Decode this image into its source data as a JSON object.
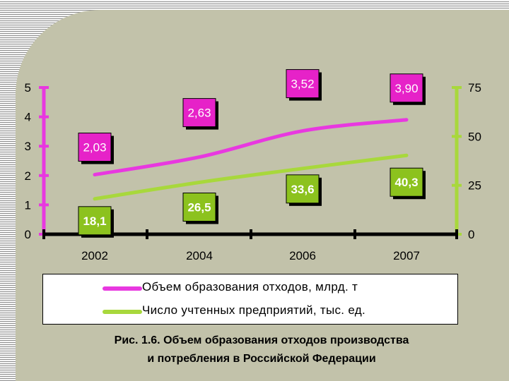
{
  "colors": {
    "series1": "#e838e0",
    "series2": "#a8d83c",
    "label_bg1": "#e622c8",
    "label_bg2": "#8cc21e",
    "axis": "#000000",
    "background": "#c2c2aa"
  },
  "chart_data": {
    "type": "line",
    "categories": [
      "2002",
      "2004",
      "2006",
      "2007"
    ],
    "x": [
      2002,
      2004,
      2006,
      2007
    ],
    "y_left": {
      "ylim": [
        0,
        5
      ],
      "ticks": [
        "0",
        "1",
        "2",
        "3",
        "4",
        "5"
      ]
    },
    "y_right": {
      "ylim": [
        0,
        75
      ],
      "ticks": [
        "0",
        "25",
        "50",
        "75"
      ]
    },
    "series": [
      {
        "name": "Объем образования отходов, млрд. т",
        "axis": "left",
        "values": [
          2.03,
          2.63,
          3.52,
          3.9
        ],
        "labels": [
          "2,03",
          "2,63",
          "3,52",
          "3,90"
        ]
      },
      {
        "name": "Число учтенных предприятий, тыс. ед.",
        "axis": "right",
        "values": [
          18.1,
          26.5,
          33.6,
          40.3
        ],
        "labels": [
          "18,1",
          "26,5",
          "33,6",
          "40,3"
        ]
      }
    ],
    "legend": "bottom",
    "grid": false
  },
  "caption": {
    "line1": "Рис. 1.6. Объем образования отходов производства",
    "line2": "и потребления в Российской Федерации"
  }
}
